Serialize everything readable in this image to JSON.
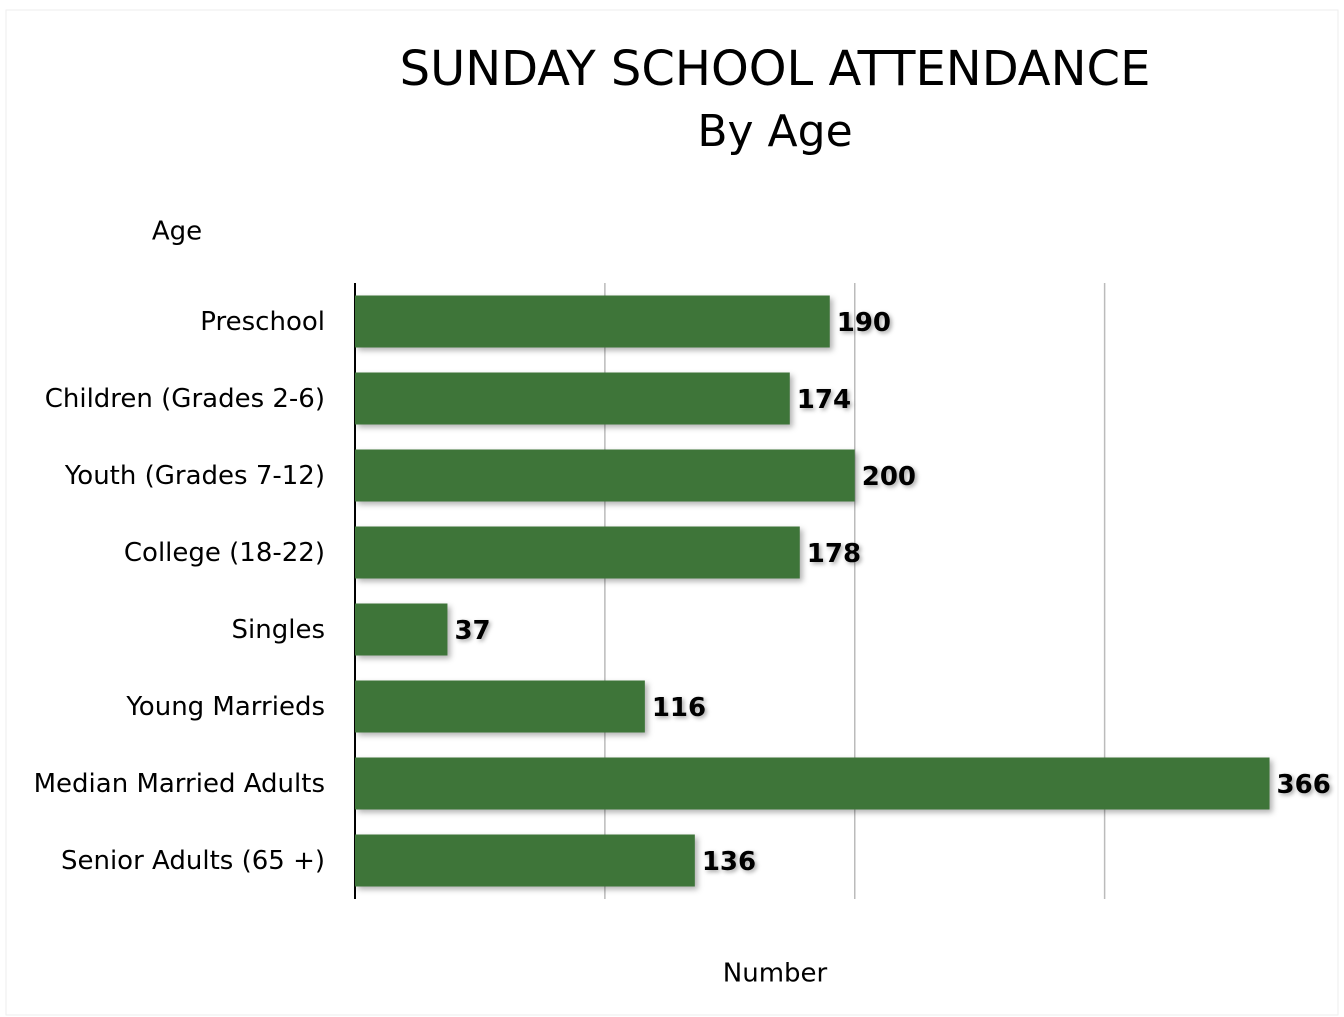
{
  "chart_data": {
    "type": "barh",
    "title": "SUNDAY SCHOOL ATTENDANCE",
    "subtitle": "By Age",
    "y_label": "Age",
    "x_label": "Number",
    "categories": [
      "Preschool",
      "Children (Grades 2-6)",
      "Youth (Grades 7-12)",
      "College (18-22)",
      "Singles",
      "Young Marrieds",
      "Median Married Adults",
      "Senior Adults (65 +)"
    ],
    "values": [
      190,
      174,
      200,
      178,
      37,
      116,
      366,
      136
    ],
    "color": "#3e7539",
    "xlim": [
      0,
      395
    ],
    "xticks": [
      0,
      100,
      200,
      300
    ],
    "grid": true
  }
}
